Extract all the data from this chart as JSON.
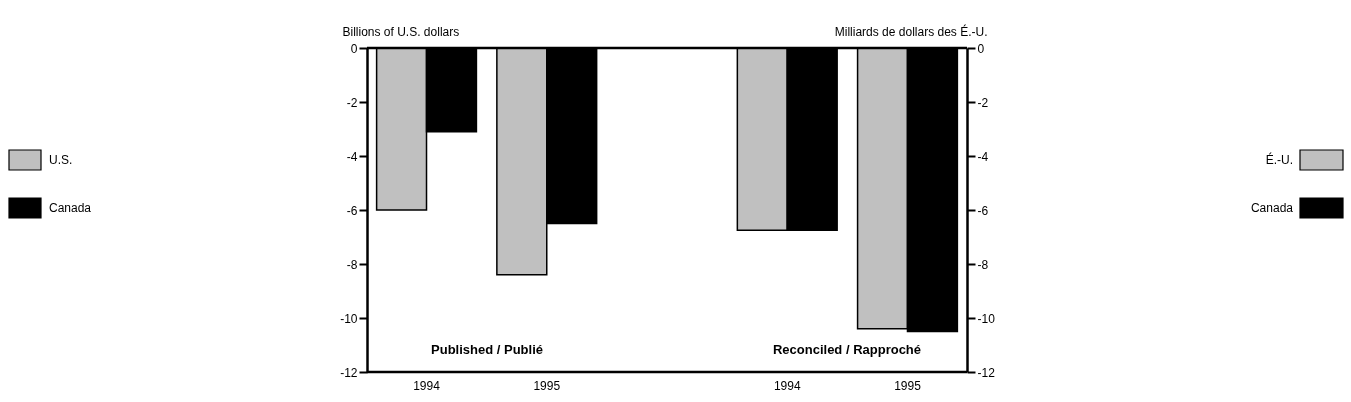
{
  "chart_data": {
    "type": "bar",
    "ylabel": "Billions of U.S. dollars",
    "y2label": "Milliards de dollars des É.-U.",
    "categories": [
      "1994",
      "1995",
      null,
      "1994",
      "1995"
    ],
    "series": [
      {
        "name": "U.S.",
        "color": "#c0c0c0",
        "values": [
          -6.0,
          -8.4,
          null,
          -6.75,
          -10.4
        ]
      },
      {
        "name": "Canada",
        "color": "#000000",
        "values": [
          -3.1,
          -6.5,
          null,
          -6.75,
          -10.5
        ]
      }
    ],
    "ylim": [
      -12,
      0
    ],
    "yticks": [
      0,
      -2,
      -4,
      -6,
      -8,
      -10,
      -12
    ],
    "y2lim": [
      -12,
      0
    ],
    "y2ticks": [
      0,
      -2,
      -4,
      -6,
      -8,
      -10,
      -12
    ],
    "annotations": [
      "Published / Publié",
      "Reconciled / Rapproché",
      "É.-U.",
      "Canada"
    ],
    "legend": "left",
    "grid": false
  }
}
